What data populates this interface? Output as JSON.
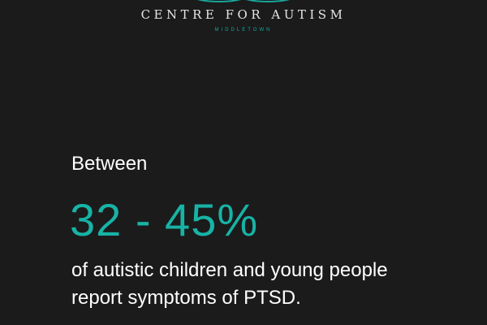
{
  "logo": {
    "name": "CENTRE FOR AUTISM",
    "location": "MIDDLETOWN",
    "accent": "#17b3a6"
  },
  "stat": {
    "intro": "Between",
    "value": "32 - 45%",
    "line1": "of autistic children and young people",
    "line2": "report symptoms of PTSD."
  }
}
